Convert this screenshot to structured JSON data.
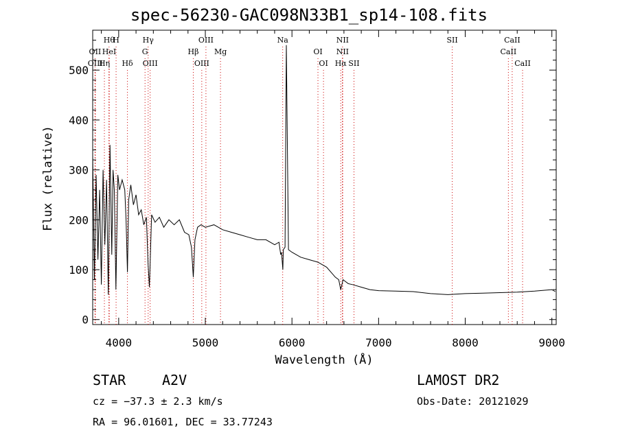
{
  "chart_data": {
    "type": "line",
    "title": "spec-56230-GAC098N33B1_sp14-108.fits",
    "xlabel": "Wavelength (Å)",
    "ylabel": "Flux (relative)",
    "xlim": [
      3700,
      9050
    ],
    "ylim": [
      -10,
      580
    ],
    "xticks": [
      4000,
      5000,
      6000,
      7000,
      8000,
      9000
    ],
    "yticks": [
      0,
      100,
      200,
      300,
      400,
      500
    ],
    "grid": false,
    "series": [
      {
        "x": [
          3700,
          3720,
          3740,
          3760,
          3780,
          3800,
          3820,
          3840,
          3860,
          3880,
          3900,
          3920,
          3935,
          3950,
          3968,
          3990,
          4010,
          4040,
          4070,
          4085,
          4101,
          4115,
          4140,
          4170,
          4200,
          4230,
          4260,
          4290,
          4320,
          4340,
          4355,
          4380,
          4420,
          4470,
          4520,
          4580,
          4640,
          4700,
          4760,
          4810,
          4840,
          4861,
          4880,
          4910,
          4950,
          5000,
          5100,
          5200,
          5300,
          5400,
          5500,
          5600,
          5700,
          5800,
          5850,
          5870,
          5880,
          5895,
          5900,
          5920,
          5935,
          5960,
          6000,
          6050,
          6100,
          6200,
          6300,
          6400,
          6500,
          6540,
          6563,
          6590,
          6650,
          6700,
          6800,
          6900,
          7000,
          7200,
          7400,
          7600,
          7800,
          8000,
          8200,
          8400,
          8600,
          8800,
          9000,
          9040
        ],
        "y": [
          330,
          80,
          290,
          120,
          260,
          70,
          300,
          150,
          280,
          50,
          350,
          130,
          300,
          260,
          60,
          290,
          260,
          280,
          260,
          200,
          95,
          240,
          270,
          230,
          250,
          210,
          220,
          190,
          205,
          110,
          65,
          210,
          195,
          205,
          185,
          200,
          190,
          200,
          175,
          170,
          145,
          85,
          160,
          185,
          190,
          185,
          190,
          180,
          175,
          170,
          165,
          160,
          160,
          150,
          155,
          130,
          135,
          100,
          140,
          145,
          550,
          140,
          135,
          130,
          125,
          120,
          115,
          105,
          85,
          80,
          60,
          80,
          72,
          70,
          65,
          60,
          58,
          57,
          56,
          52,
          50,
          52,
          53,
          54,
          55,
          57,
          60,
          56
        ]
      }
    ],
    "lines_top": [
      {
        "x": 3889,
        "label": "Hθ"
      },
      {
        "x": 3970,
        "label": "H"
      },
      {
        "x": 4340,
        "label": "Hγ"
      },
      {
        "x": 5007,
        "label": "OIII"
      },
      {
        "x": 5893,
        "label": "Na"
      },
      {
        "x": 6584,
        "label": "NII"
      },
      {
        "x": 7850,
        "label": "SII"
      },
      {
        "x": 8542,
        "label": "CaII"
      }
    ],
    "lines_mid": [
      {
        "x": 3727,
        "label": "OII"
      },
      {
        "x": 3890,
        "label": "HeI"
      },
      {
        "x": 4304,
        "label": "G"
      },
      {
        "x": 4861,
        "label": "Hβ"
      },
      {
        "x": 5175,
        "label": "Mg"
      },
      {
        "x": 6300,
        "label": "OI"
      },
      {
        "x": 6584,
        "label": "NII"
      },
      {
        "x": 8498,
        "label": "CaII"
      }
    ],
    "lines_bot": [
      {
        "x": 3730,
        "label": "OIII"
      },
      {
        "x": 3835,
        "label": "Hη"
      },
      {
        "x": 4101,
        "label": "Hδ"
      },
      {
        "x": 4363,
        "label": "OIII"
      },
      {
        "x": 4959,
        "label": "OIII"
      },
      {
        "x": 6364,
        "label": "OI"
      },
      {
        "x": 6563,
        "label": "Hα"
      },
      {
        "x": 6716,
        "label": "SII"
      },
      {
        "x": 8662,
        "label": "CaII"
      }
    ]
  },
  "info": {
    "object_class": "STAR",
    "subclass": "A2V",
    "survey": "LAMOST DR2",
    "cz": "cz = −37.3 ± 2.3 km/s",
    "obs_date": "Obs-Date: 20121029",
    "coords": "RA =  96.01601, DEC =  33.77243"
  }
}
